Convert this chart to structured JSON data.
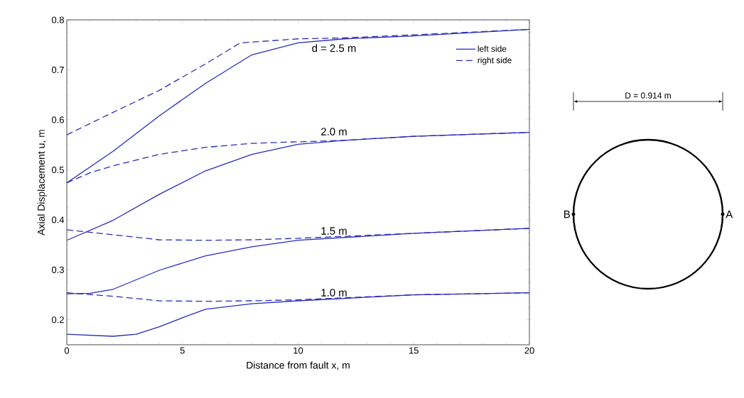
{
  "chart_data": {
    "type": "line",
    "xlabel": "Distance from fault x, m",
    "ylabel": "Axial Displacement u, m",
    "xlim": [
      0,
      20
    ],
    "ylim": [
      0.15,
      0.8
    ],
    "xticks": [
      0,
      5,
      10,
      15,
      20
    ],
    "yticks": [
      0.2,
      0.3,
      0.4,
      0.5,
      0.6,
      0.7,
      0.8
    ],
    "legend": "top right",
    "series": [
      {
        "name": "left side",
        "color": "#2b2bb8",
        "line_style": "solid",
        "x": [
          0,
          2,
          4,
          6,
          8,
          10,
          12,
          15,
          20
        ],
        "values": [
          0.474,
          0.537,
          0.608,
          0.673,
          0.73,
          0.754,
          0.762,
          0.768,
          0.781
        ]
      },
      {
        "name": "right side",
        "color": "#2b2bb8",
        "line_style": "dashed",
        "x": [
          0,
          2,
          4,
          6,
          7.5,
          10,
          12,
          15,
          20
        ],
        "values": [
          0.57,
          0.615,
          0.659,
          0.712,
          0.754,
          0.762,
          0.764,
          0.77,
          0.781
        ]
      },
      {
        "color": "#2b2bb8",
        "line_style": "solid",
        "x": [
          0,
          2,
          4,
          6,
          8,
          10,
          12,
          15,
          20
        ],
        "values": [
          0.359,
          0.399,
          0.451,
          0.498,
          0.531,
          0.551,
          0.559,
          0.567,
          0.575
        ]
      },
      {
        "color": "#2b2bb8",
        "line_style": "dashed",
        "x": [
          0,
          1,
          2,
          4,
          6,
          8,
          10,
          12,
          15,
          20
        ],
        "values": [
          0.474,
          0.494,
          0.508,
          0.531,
          0.545,
          0.553,
          0.556,
          0.559,
          0.567,
          0.575
        ]
      },
      {
        "color": "#2b2bb8",
        "line_style": "solid",
        "x": [
          0,
          1,
          2,
          4,
          6,
          8,
          10,
          15,
          20
        ],
        "values": [
          0.252,
          0.253,
          0.261,
          0.299,
          0.328,
          0.346,
          0.359,
          0.373,
          0.383
        ]
      },
      {
        "color": "#2b2bb8",
        "line_style": "dashed",
        "x": [
          0,
          2,
          4,
          6,
          8,
          10,
          15,
          20
        ],
        "values": [
          0.38,
          0.37,
          0.36,
          0.359,
          0.36,
          0.363,
          0.373,
          0.383
        ]
      },
      {
        "color": "#2b2bb8",
        "line_style": "solid",
        "x": [
          0,
          2,
          3,
          4,
          5,
          6,
          8,
          10,
          15,
          20
        ],
        "values": [
          0.171,
          0.167,
          0.171,
          0.186,
          0.204,
          0.221,
          0.232,
          0.238,
          0.25,
          0.254
        ]
      },
      {
        "color": "#2b2bb8",
        "line_style": "dashed",
        "x": [
          0,
          2,
          4,
          6,
          8,
          10,
          15,
          20
        ],
        "values": [
          0.254,
          0.247,
          0.238,
          0.237,
          0.238,
          0.24,
          0.25,
          0.254
        ]
      }
    ],
    "annotations": [
      "d = 2.5 m",
      "2.0 m",
      "1.5 m",
      "1.0 m",
      "D = 0.914 m",
      "B",
      "A"
    ]
  }
}
